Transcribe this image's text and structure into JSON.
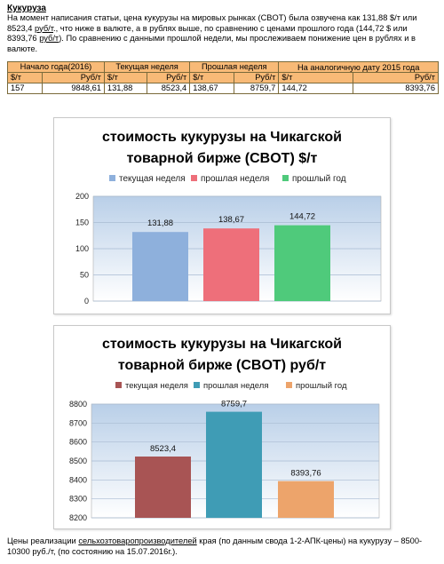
{
  "article": {
    "heading": "Кукуруза",
    "intro_1": "На момент написания статьи, цена кукурузы на мировых рынках (CBOT) была озвучена как 131,88 $/т или 8523,4 ",
    "intro_unit": "руб/т",
    "intro_2": "., что ниже в валюте, а в рублях выше, по сравнению с ценами прошлого года (144,72 $ или 8393,76 ",
    "intro_unit2": "руб/т",
    "intro_3": "). По сравнению с данными прошлой недели, мы прослеживаем понижение цен в рублях и в валюте."
  },
  "price_table": {
    "group_headers": [
      "Начало года(2016)",
      "Текущая неделя",
      "Прошлая неделя",
      "На аналогичную дату 2015 года"
    ],
    "unit_headers": [
      "$/т",
      "Руб/т",
      "$/т",
      "Руб/т",
      "$/т",
      "Руб/т",
      "$/т",
      "Руб/т"
    ],
    "values": [
      "157",
      "9848,61",
      "131,88",
      "8523,4",
      "138,67",
      "8759,7",
      "144,72",
      "8393,76"
    ]
  },
  "colors": {
    "plot_top": "#b9cfe8",
    "plot_bottom": "#ffffff",
    "c1_current": "#8eb0dc",
    "c1_previous": "#ee6f7a",
    "c1_lastyear": "#4fca7b",
    "c2_current": "#a85454",
    "c2_previous": "#3f9cb5",
    "c2_lastyear": "#eda46b"
  },
  "chart_data": [
    {
      "type": "bar",
      "title_line1": "стоимость кукурузы на Чикагской",
      "title_line2": "товарной бирже (CBOT) $/т",
      "legend_position": "top",
      "series": [
        {
          "name": "текущая неделя",
          "values": [
            131.88
          ],
          "label": "131,88"
        },
        {
          "name": "прошлая неделя",
          "values": [
            138.67
          ],
          "label": "138,67"
        },
        {
          "name": "прошлый год",
          "values": [
            144.72
          ],
          "label": "144,72"
        }
      ],
      "ylim": [
        0,
        200
      ],
      "yticks": [
        0,
        50,
        100,
        150,
        200
      ],
      "grid": true
    },
    {
      "type": "bar",
      "title_line1": "стоимость кукурузы на Чикагской",
      "title_line2": "товарной бирже (CBOT) руб/т",
      "legend_position": "top",
      "series": [
        {
          "name": "текущая неделя",
          "values": [
            8523.4
          ],
          "label": "8523,4"
        },
        {
          "name": "прошлая неделя",
          "values": [
            8759.7
          ],
          "label": "8759,7"
        },
        {
          "name": "прошлый год",
          "values": [
            8393.76
          ],
          "label": "8393,76"
        }
      ],
      "ylim": [
        8200,
        8800
      ],
      "yticks": [
        8200,
        8300,
        8400,
        8500,
        8600,
        8700,
        8800
      ],
      "grid": true
    }
  ],
  "footer": {
    "text_1": "Цены реализации ",
    "text_u": "сельхозтоваропроизводителей",
    "text_2": " края (по данным свода 1-2-АПК-цены) на кукурузу – 8500-10300 руб./т, (по состоянию на 15.07.2016г.)."
  }
}
